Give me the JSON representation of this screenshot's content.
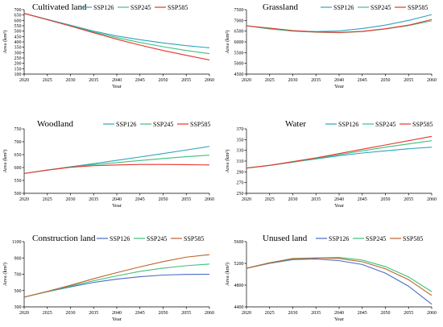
{
  "chart_data": [
    {
      "type": "line",
      "title": "Cultivated land",
      "xlabel": "Year",
      "ylabel": "Area (km²)",
      "x": [
        2020,
        2025,
        2030,
        2035,
        2040,
        2045,
        2050,
        2055,
        2060
      ],
      "xlim": [
        2020,
        2060
      ],
      "ylim": [
        100,
        700
      ],
      "yticks": [
        100,
        150,
        200,
        250,
        300,
        350,
        400,
        450,
        500,
        550,
        600,
        650,
        700
      ],
      "legend": "top-right",
      "series": [
        {
          "name": "SSP126",
          "color": "#2ea3bd",
          "values": [
            665,
            610,
            555,
            500,
            455,
            420,
            390,
            365,
            345
          ]
        },
        {
          "name": "SSP245",
          "color": "#3cc17a",
          "values": [
            665,
            608,
            550,
            492,
            440,
            395,
            355,
            320,
            290
          ]
        },
        {
          "name": "SSP585",
          "color": "#e8322e",
          "values": [
            665,
            606,
            547,
            485,
            425,
            370,
            320,
            275,
            232
          ]
        }
      ]
    },
    {
      "type": "line",
      "title": "Grassland",
      "xlabel": "Year",
      "ylabel": "Area (km²)",
      "x": [
        2020,
        2025,
        2030,
        2035,
        2040,
        2045,
        2050,
        2055,
        2060
      ],
      "xlim": [
        2020,
        2060
      ],
      "ylim": [
        4500,
        7500
      ],
      "yticks": [
        4500,
        5000,
        5500,
        6000,
        6500,
        7000,
        7500
      ],
      "legend": "top-right",
      "series": [
        {
          "name": "SSP126",
          "color": "#2ea3bd",
          "values": [
            6750,
            6600,
            6510,
            6480,
            6510,
            6620,
            6780,
            7000,
            7270
          ]
        },
        {
          "name": "SSP245",
          "color": "#3cc17a",
          "values": [
            6750,
            6610,
            6500,
            6450,
            6430,
            6480,
            6600,
            6760,
            6980
          ]
        },
        {
          "name": "SSP585",
          "color": "#e8322e",
          "values": [
            6750,
            6640,
            6530,
            6460,
            6440,
            6490,
            6610,
            6780,
            7040
          ]
        }
      ]
    },
    {
      "type": "line",
      "title": "Woodland",
      "xlabel": "Year",
      "ylabel": "Area (km²)",
      "x": [
        2020,
        2025,
        2030,
        2035,
        2040,
        2045,
        2050,
        2055,
        2060
      ],
      "xlim": [
        2020,
        2060
      ],
      "ylim": [
        500,
        750
      ],
      "yticks": [
        500,
        550,
        600,
        650,
        700,
        750
      ],
      "legend": "top-right",
      "series": [
        {
          "name": "SSP126",
          "color": "#2ea3bd",
          "values": [
            577,
            590,
            603,
            615,
            628,
            641,
            654,
            668,
            682
          ]
        },
        {
          "name": "SSP245",
          "color": "#3cc17a",
          "values": [
            577,
            590,
            602,
            611,
            619,
            627,
            635,
            642,
            648
          ]
        },
        {
          "name": "SSP585",
          "color": "#e8322e",
          "values": [
            577,
            590,
            601,
            607,
            610,
            612,
            612,
            611,
            610
          ]
        }
      ]
    },
    {
      "type": "line",
      "title": "Water",
      "xlabel": "Year",
      "ylabel": "Area (km²)",
      "x": [
        2020,
        2025,
        2030,
        2035,
        2040,
        2045,
        2050,
        2055,
        2060
      ],
      "xlim": [
        2020,
        2060
      ],
      "ylim": [
        250,
        370
      ],
      "yticks": [
        250,
        270,
        290,
        310,
        330,
        350,
        370
      ],
      "legend": "top-right",
      "series": [
        {
          "name": "SSP126",
          "color": "#2ea3bd",
          "values": [
            297,
            302,
            308,
            314,
            320,
            325,
            329,
            333,
            336
          ]
        },
        {
          "name": "SSP245",
          "color": "#3cc17a",
          "values": [
            297,
            302,
            308,
            315,
            322,
            329,
            336,
            342,
            348
          ]
        },
        {
          "name": "SSP585",
          "color": "#e8322e",
          "values": [
            297,
            302,
            309,
            316,
            324,
            332,
            340,
            348,
            356
          ]
        }
      ]
    },
    {
      "type": "line",
      "title": "Construction land",
      "xlabel": "Year",
      "ylabel": "Area (km²)",
      "x": [
        2020,
        2025,
        2030,
        2035,
        2040,
        2045,
        2050,
        2055,
        2060
      ],
      "xlim": [
        2020,
        2060
      ],
      "ylim": [
        300,
        1100
      ],
      "yticks": [
        300,
        500,
        700,
        900,
        1100
      ],
      "legend": "top-right",
      "series": [
        {
          "name": "SSP126",
          "color": "#4a6cc4",
          "values": [
            420,
            485,
            545,
            600,
            640,
            670,
            690,
            698,
            700
          ]
        },
        {
          "name": "SSP245",
          "color": "#3cc17a",
          "values": [
            420,
            487,
            555,
            620,
            680,
            735,
            775,
            805,
            825
          ]
        },
        {
          "name": "SSP585",
          "color": "#b9642a",
          "values": [
            420,
            490,
            565,
            645,
            720,
            790,
            855,
            910,
            940
          ]
        }
      ]
    },
    {
      "type": "line",
      "title": "Unused land",
      "xlabel": "Year",
      "ylabel": "Area (km²)",
      "x": [
        2020,
        2025,
        2030,
        2035,
        2040,
        2045,
        2050,
        2055,
        2060
      ],
      "xlim": [
        2020,
        2060
      ],
      "ylim": [
        4400,
        5600
      ],
      "yticks": [
        4400,
        4800,
        5200,
        5600
      ],
      "legend": "top-right",
      "series": [
        {
          "name": "SSP126",
          "color": "#4a6cc4",
          "values": [
            5110,
            5200,
            5270,
            5280,
            5250,
            5180,
            5020,
            4780,
            4450
          ]
        },
        {
          "name": "SSP245",
          "color": "#3cc17a",
          "values": [
            5110,
            5210,
            5280,
            5300,
            5310,
            5260,
            5140,
            4950,
            4680
          ]
        },
        {
          "name": "SSP585",
          "color": "#b9642a",
          "values": [
            5110,
            5210,
            5290,
            5300,
            5290,
            5230,
            5100,
            4900,
            4610
          ]
        }
      ]
    }
  ]
}
